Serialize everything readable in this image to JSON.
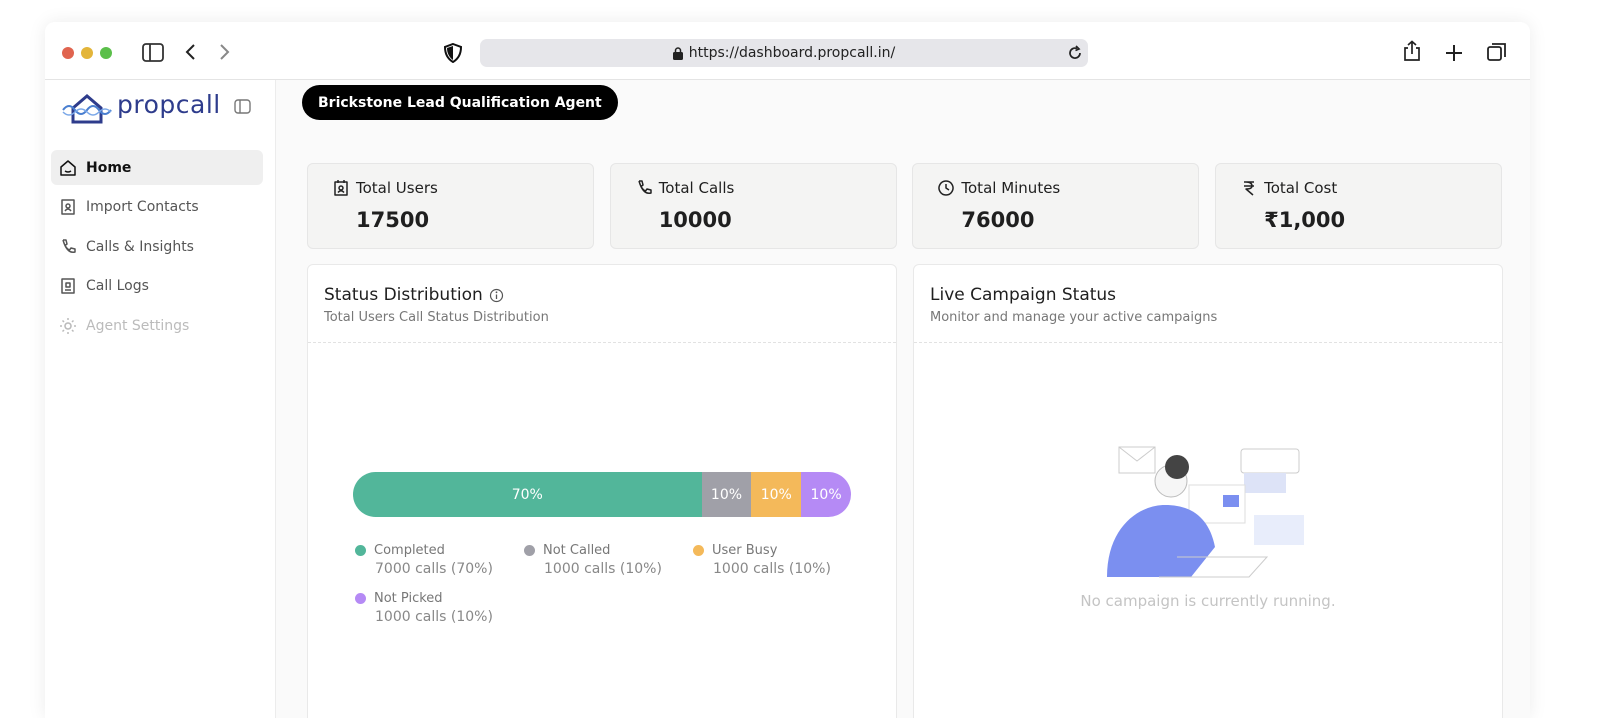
{
  "browser": {
    "url": "https://dashboard.propcall.in/"
  },
  "sidebar": {
    "logo": "propcall",
    "nav": [
      "Home",
      "Import Contacts",
      "Calls & Insights",
      "Call Logs",
      "Agent Settings"
    ]
  },
  "header": {
    "agent": "Brickstone Lead Qualification Agent"
  },
  "stats": [
    {
      "label": "Total Users",
      "value": 17500
    },
    {
      "label": "Total Calls",
      "value": 10000
    },
    {
      "label": "Total Minutes",
      "value": 76000
    },
    {
      "label": "Total Cost",
      "value": "₹1,000"
    }
  ],
  "status": {
    "title": "Status Distribution",
    "subtitle": "Total Users Call Status Distribution",
    "names": [
      "Completed",
      "Not Called",
      "User Busy",
      "Not Picked"
    ],
    "values": [
      70,
      10,
      10,
      10
    ],
    "value_labels": [
      "70%",
      "10%",
      "10%",
      "10%"
    ],
    "details": [
      "7000 calls (70%)",
      "1000 calls (10%)",
      "1000 calls (10%)",
      "1000 calls (10%)"
    ],
    "colors": [
      "#52b69a",
      "#a0a0a8",
      "#f4b95a",
      "#b58af5"
    ]
  },
  "campaign": {
    "title": "Live Campaign Status",
    "subtitle": "Monitor and manage your active campaigns",
    "empty": "No campaign is currently running."
  }
}
